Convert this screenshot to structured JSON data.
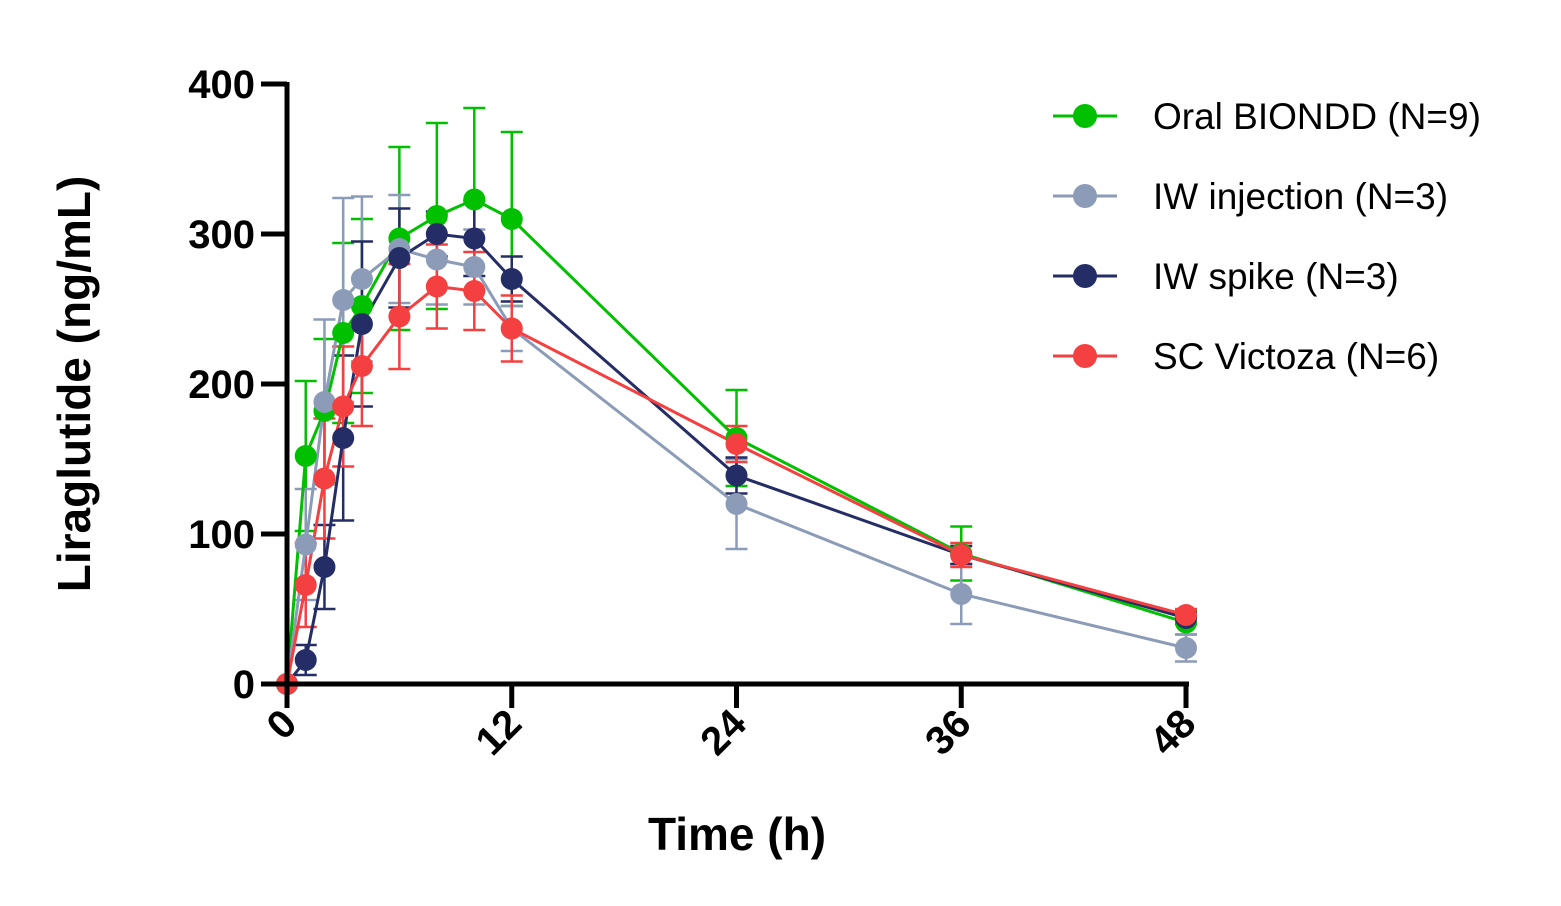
{
  "chart_data": {
    "type": "line",
    "xlabel": "Time (h)",
    "ylabel": "Liraglutide (ng/mL)",
    "xlim": [
      0,
      48
    ],
    "ylim": [
      0,
      400
    ],
    "xticks": [
      0,
      12,
      24,
      36,
      48
    ],
    "yticks": [
      0,
      100,
      200,
      300,
      400
    ],
    "legend_position": "top-right",
    "grid": false,
    "series": [
      {
        "name": "Oral BIONDD (N=9)",
        "color": "#00c000",
        "x": [
          0,
          1,
          2,
          3,
          4,
          6,
          8,
          10,
          12,
          24,
          36,
          48
        ],
        "y": [
          0,
          152,
          182,
          234,
          252,
          297,
          312,
          323,
          310,
          164,
          87,
          41
        ],
        "error": [
          0,
          50,
          48,
          60,
          58,
          61,
          62,
          61,
          58,
          32,
          18,
          8
        ]
      },
      {
        "name": "IW injection (N=3)",
        "color": "#8c9bb8",
        "x": [
          0,
          1,
          2,
          3,
          4,
          6,
          8,
          10,
          12,
          24,
          36,
          48
        ],
        "y": [
          0,
          93,
          188,
          256,
          270,
          290,
          283,
          278,
          237,
          120,
          60,
          24
        ],
        "error": [
          0,
          37,
          55,
          68,
          55,
          36,
          30,
          25,
          15,
          30,
          20,
          9
        ]
      },
      {
        "name": "IW spike (N=3)",
        "color": "#252d66",
        "x": [
          0,
          1,
          2,
          3,
          4,
          6,
          8,
          10,
          12,
          24,
          36,
          48
        ],
        "y": [
          0,
          16,
          78,
          164,
          240,
          284,
          300,
          297,
          270,
          139,
          86,
          44
        ],
        "error": [
          0,
          10,
          28,
          55,
          55,
          33,
          15,
          25,
          15,
          12,
          6,
          4
        ]
      },
      {
        "name": "SC Victoza (N=6)",
        "color": "#f44040",
        "x": [
          0,
          1,
          2,
          3,
          4,
          6,
          8,
          10,
          12,
          24,
          36,
          48
        ],
        "y": [
          0,
          66,
          137,
          185,
          212,
          245,
          265,
          262,
          237,
          160,
          86,
          46
        ],
        "error": [
          0,
          28,
          40,
          40,
          40,
          35,
          28,
          26,
          22,
          12,
          8,
          4
        ]
      }
    ]
  }
}
